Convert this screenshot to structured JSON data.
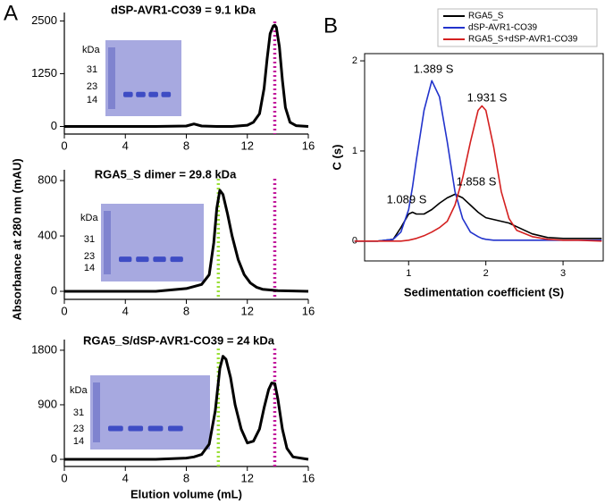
{
  "chart_data": [
    {
      "type": "line",
      "panel": "A",
      "title": "dSP-AVR1-CO39 = 9.1 kDa",
      "x": [
        0,
        2,
        4,
        6,
        8,
        8.5,
        9,
        10,
        11,
        12,
        12.4,
        12.8,
        13.1,
        13.3,
        13.5,
        13.7,
        13.8,
        13.9,
        14.1,
        14.3,
        14.5,
        14.8,
        15.2,
        16
      ],
      "values": [
        0,
        0,
        0,
        0,
        10,
        60,
        10,
        0,
        0,
        30,
        100,
        300,
        900,
        1600,
        2200,
        2380,
        2400,
        2350,
        1900,
        1100,
        450,
        100,
        20,
        0
      ],
      "color": "#000000",
      "xlim": [
        0,
        16
      ],
      "xticks": [
        0,
        4,
        8,
        12,
        16
      ],
      "ylim": [
        -180,
        2700
      ],
      "yticks": [
        0,
        1250,
        2500
      ],
      "vlines": [
        {
          "x": 13.8,
          "color": "#c2189c"
        }
      ],
      "inset_labels": [
        "kDa",
        "31",
        "23",
        "14"
      ]
    },
    {
      "type": "line",
      "title": "RGA5_S  dimer = 29.8 kDa",
      "ylabel": "Absorbance at 280 nm (mAU)",
      "x": [
        0,
        2,
        4,
        6,
        8,
        9,
        9.5,
        9.8,
        10,
        10.2,
        10.4,
        10.7,
        11,
        11.4,
        11.8,
        12.2,
        12.6,
        13,
        14,
        16
      ],
      "values": [
        0,
        0,
        0,
        0,
        20,
        50,
        120,
        350,
        600,
        730,
        700,
        560,
        400,
        230,
        120,
        60,
        30,
        15,
        5,
        0
      ],
      "color": "#000000",
      "xlim": [
        0,
        16
      ],
      "xticks": [
        0,
        4,
        8,
        12,
        16
      ],
      "ylim": [
        -58,
        878
      ],
      "yticks": [
        0,
        400,
        800
      ],
      "vlines": [
        {
          "x": 10.1,
          "color": "#9be03a"
        },
        {
          "x": 13.8,
          "color": "#c2189c"
        }
      ],
      "inset_labels": [
        "kDa",
        "31",
        "23",
        "14"
      ]
    },
    {
      "type": "line",
      "title": "RGA5_S/dSP-AVR1-CO39 = 24 kDa",
      "xlabel": "Elution volume (mL)",
      "x": [
        0,
        2,
        4,
        6,
        8,
        8.5,
        9,
        9.5,
        9.9,
        10.2,
        10.4,
        10.6,
        10.9,
        11.2,
        11.6,
        12,
        12.4,
        12.8,
        13.1,
        13.4,
        13.6,
        13.8,
        14,
        14.3,
        14.6,
        15,
        16
      ],
      "values": [
        0,
        0,
        0,
        0,
        20,
        40,
        80,
        250,
        800,
        1500,
        1700,
        1650,
        1350,
        900,
        500,
        270,
        300,
        500,
        850,
        1150,
        1260,
        1250,
        1000,
        500,
        180,
        40,
        0
      ],
      "color": "#000000",
      "xlim": [
        0,
        16
      ],
      "xticks": [
        0,
        4,
        8,
        12,
        16
      ],
      "ylim": [
        -118,
        1976
      ],
      "yticks": [
        0,
        900,
        1800
      ],
      "vlines": [
        {
          "x": 10.1,
          "color": "#9be03a"
        },
        {
          "x": 13.8,
          "color": "#c2189c"
        }
      ],
      "inset_labels": [
        "kDa",
        "31",
        "23",
        "14"
      ]
    },
    {
      "type": "line",
      "panel": "B",
      "xlabel": "Sedimentation coefficient (S)",
      "ylabel": "C (s)",
      "x": [
        0.3,
        0.6,
        0.8,
        0.9,
        1.0,
        1.05,
        1.1,
        1.2,
        1.3,
        1.4,
        1.5,
        1.6,
        1.7,
        1.8,
        1.9,
        1.95,
        2.0,
        2.1,
        2.2,
        2.3,
        2.4,
        2.6,
        2.8,
        3.0,
        3.2,
        3.5
      ],
      "series": [
        {
          "name": "RGA5_S",
          "color": "#000000",
          "values": [
            0,
            0,
            0.02,
            0.15,
            0.3,
            0.32,
            0.3,
            0.3,
            0.35,
            0.42,
            0.48,
            0.52,
            0.48,
            0.4,
            0.32,
            0.29,
            0.26,
            0.24,
            0.22,
            0.2,
            0.16,
            0.08,
            0.04,
            0.03,
            0.03,
            0.03
          ]
        },
        {
          "name": "dSP-AVR1-CO39",
          "color": "#2233cc",
          "values": [
            0,
            0,
            0.02,
            0.1,
            0.35,
            0.6,
            0.9,
            1.45,
            1.78,
            1.6,
            1.1,
            0.55,
            0.25,
            0.1,
            0.05,
            0.03,
            0.02,
            0.01,
            0.01,
            0.01,
            0.01,
            0.01,
            0.01,
            0.01,
            0.01,
            0.01
          ]
        },
        {
          "name": "RGA5_S+dSP-AVR1-CO39",
          "color": "#d42020",
          "values": [
            0,
            0,
            0,
            0,
            0.01,
            0.02,
            0.03,
            0.06,
            0.1,
            0.15,
            0.22,
            0.4,
            0.7,
            1.1,
            1.45,
            1.5,
            1.45,
            1.05,
            0.55,
            0.25,
            0.12,
            0.05,
            0.02,
            0.01,
            0.01,
            0
          ]
        }
      ],
      "xlim": [
        0.43,
        3.52
      ],
      "xticks": [
        1,
        2,
        3
      ],
      "ylim": [
        -0.22,
        2.08
      ],
      "yticks": [
        0,
        1,
        2
      ],
      "annotations": [
        "1.389 S",
        "1.931 S",
        "1.089 S",
        "1.858 S"
      ]
    }
  ]
}
